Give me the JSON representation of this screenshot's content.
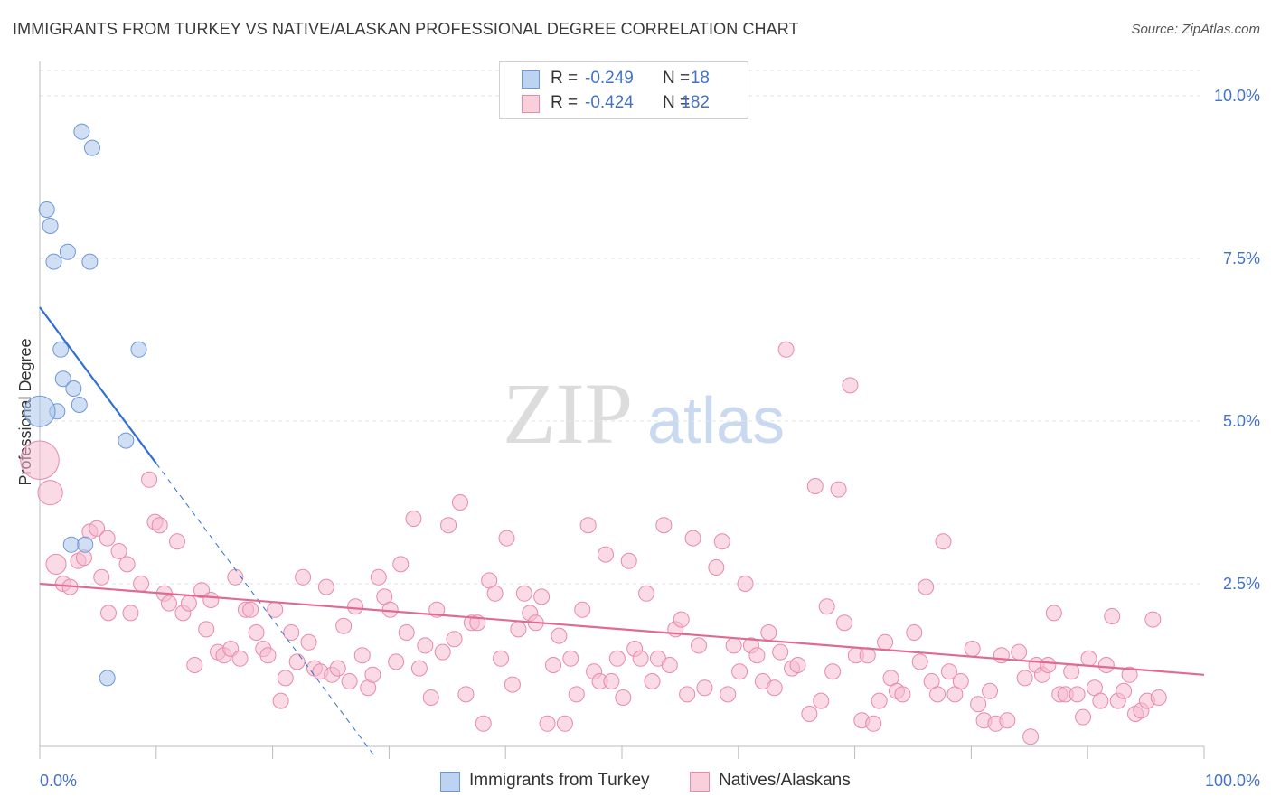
{
  "title": "IMMIGRANTS FROM TURKEY VS NATIVE/ALASKAN PROFESSIONAL DEGREE CORRELATION CHART",
  "source": "Source: ZipAtlas.com",
  "watermark": {
    "zip": "ZIP",
    "atlas": "atlas"
  },
  "legend": {
    "rows": [
      {
        "r_label": "R =",
        "r_value": "-0.249",
        "n_label": "N =",
        "n_value": "18",
        "color": "#a9c4eb",
        "border": "#6f97d6"
      },
      {
        "r_label": "R =",
        "r_value": "-0.424",
        "n_label": "N =",
        "n_value": "182",
        "color": "#f6bccd",
        "border": "#e88aa8"
      }
    ]
  },
  "bottom_legend": [
    {
      "label": "Immigrants from Turkey",
      "color": "#a9c4eb",
      "border": "#6f97d6"
    },
    {
      "label": "Natives/Alaskans",
      "color": "#f6bccd",
      "border": "#e88aa8"
    }
  ],
  "chart_data": {
    "type": "scatter",
    "title": "IMMIGRANTS FROM TURKEY VS NATIVE/ALASKAN PROFESSIONAL DEGREE CORRELATION CHART",
    "xlabel": "",
    "ylabel": "Professional Degree",
    "xlim": [
      0,
      100
    ],
    "ylim": [
      0,
      10.5
    ],
    "x_tick_labels": [
      "0.0%",
      "100.0%"
    ],
    "y_ticks": [
      2.5,
      5.0,
      7.5,
      10.0
    ],
    "y_tick_labels": [
      "2.5%",
      "5.0%",
      "7.5%",
      "10.0%"
    ],
    "grid": true,
    "series": [
      {
        "name": "Immigrants from Turkey",
        "color": "#a9c4eb",
        "stroke": "#6f97d6",
        "trend": {
          "x0": 0,
          "y0": 6.75,
          "x1": 10.0,
          "y1": 4.35,
          "dash_to_x": 28.7,
          "line_color": "#2f6fd6"
        },
        "points": [
          [
            3.6,
            9.45,
            1
          ],
          [
            4.5,
            9.2,
            1
          ],
          [
            0.6,
            8.25,
            1
          ],
          [
            0.9,
            8.0,
            1
          ],
          [
            2.4,
            7.6,
            1
          ],
          [
            1.2,
            7.45,
            1
          ],
          [
            4.3,
            7.45,
            1
          ],
          [
            8.5,
            6.1,
            1
          ],
          [
            1.8,
            6.1,
            1
          ],
          [
            2.0,
            5.65,
            1
          ],
          [
            2.9,
            5.5,
            1
          ],
          [
            3.4,
            5.25,
            1
          ],
          [
            1.5,
            5.15,
            1
          ],
          [
            0.0,
            5.15,
            2
          ],
          [
            7.4,
            4.7,
            1
          ],
          [
            2.7,
            3.1,
            1
          ],
          [
            3.9,
            3.1,
            1
          ],
          [
            5.8,
            1.05,
            1
          ]
        ]
      },
      {
        "name": "Natives/Alaskans",
        "color": "#f6bccd",
        "stroke": "#e88aa8",
        "trend": {
          "x0": 0,
          "y0": 2.5,
          "x1": 100,
          "y1": 1.1,
          "line_color": "#e06a93"
        },
        "points": [
          [
            0.0,
            4.4,
            2.5
          ],
          [
            0.9,
            3.9,
            1.6
          ],
          [
            1.4,
            2.8,
            1.3
          ],
          [
            2.0,
            2.5,
            1
          ],
          [
            2.6,
            2.45,
            1
          ],
          [
            3.3,
            2.85,
            1
          ],
          [
            3.8,
            2.9,
            1
          ],
          [
            4.3,
            3.3,
            1
          ],
          [
            4.9,
            3.35,
            1
          ],
          [
            5.8,
            3.2,
            1
          ],
          [
            6.8,
            3.0,
            1
          ],
          [
            7.5,
            2.8,
            1
          ],
          [
            5.3,
            2.6,
            1
          ],
          [
            5.9,
            2.05,
            1
          ],
          [
            7.8,
            2.05,
            1
          ],
          [
            8.7,
            2.5,
            1
          ],
          [
            9.4,
            4.1,
            1
          ],
          [
            9.9,
            3.45,
            1
          ],
          [
            10.3,
            3.4,
            1
          ],
          [
            10.7,
            2.35,
            1
          ],
          [
            11.1,
            2.2,
            1
          ],
          [
            11.8,
            3.15,
            1
          ],
          [
            12.3,
            2.05,
            1
          ],
          [
            12.8,
            2.2,
            1
          ],
          [
            13.3,
            1.25,
            1
          ],
          [
            13.9,
            2.4,
            1
          ],
          [
            14.3,
            1.8,
            1
          ],
          [
            14.7,
            2.25,
            1
          ],
          [
            15.3,
            1.45,
            1
          ],
          [
            15.8,
            1.4,
            1
          ],
          [
            16.4,
            1.5,
            1
          ],
          [
            16.8,
            2.6,
            1
          ],
          [
            17.2,
            1.35,
            1
          ],
          [
            17.7,
            2.1,
            1
          ],
          [
            18.1,
            2.1,
            1
          ],
          [
            18.6,
            1.75,
            1
          ],
          [
            19.2,
            1.5,
            1
          ],
          [
            19.6,
            1.4,
            1
          ],
          [
            20.2,
            2.1,
            1
          ],
          [
            20.7,
            0.7,
            1
          ],
          [
            21.1,
            1.05,
            1
          ],
          [
            21.6,
            1.75,
            1
          ],
          [
            22.1,
            1.3,
            1
          ],
          [
            22.6,
            2.6,
            1
          ],
          [
            23.1,
            1.6,
            1
          ],
          [
            23.6,
            1.2,
            1
          ],
          [
            24.1,
            1.15,
            1
          ],
          [
            24.6,
            2.45,
            1
          ],
          [
            25.1,
            1.1,
            1
          ],
          [
            25.6,
            1.2,
            1
          ],
          [
            26.1,
            1.85,
            1
          ],
          [
            26.6,
            1.0,
            1
          ],
          [
            27.1,
            2.15,
            1
          ],
          [
            27.7,
            1.4,
            1
          ],
          [
            28.2,
            0.9,
            1
          ],
          [
            28.6,
            1.1,
            1
          ],
          [
            29.1,
            2.6,
            1
          ],
          [
            29.6,
            2.3,
            1
          ],
          [
            30.1,
            2.1,
            1
          ],
          [
            30.6,
            1.3,
            1
          ],
          [
            31.0,
            2.8,
            1
          ],
          [
            31.5,
            1.75,
            1
          ],
          [
            32.1,
            3.5,
            1
          ],
          [
            32.6,
            1.2,
            1
          ],
          [
            33.1,
            1.55,
            1
          ],
          [
            33.6,
            0.75,
            1
          ],
          [
            34.1,
            2.1,
            1
          ],
          [
            34.6,
            1.45,
            1
          ],
          [
            35.1,
            3.4,
            1
          ],
          [
            35.6,
            1.65,
            1
          ],
          [
            36.1,
            3.75,
            1
          ],
          [
            36.6,
            0.8,
            1
          ],
          [
            37.1,
            1.9,
            1
          ],
          [
            37.6,
            1.9,
            1
          ],
          [
            38.1,
            0.35,
            1
          ],
          [
            38.6,
            2.55,
            1
          ],
          [
            39.1,
            2.35,
            1
          ],
          [
            39.6,
            1.35,
            1
          ],
          [
            40.1,
            3.2,
            1
          ],
          [
            40.6,
            0.95,
            1
          ],
          [
            41.1,
            1.8,
            1
          ],
          [
            41.6,
            2.35,
            1
          ],
          [
            42.1,
            2.05,
            1
          ],
          [
            42.6,
            1.9,
            1
          ],
          [
            43.1,
            2.3,
            1
          ],
          [
            43.6,
            0.35,
            1
          ],
          [
            44.1,
            1.25,
            1
          ],
          [
            44.6,
            1.7,
            1
          ],
          [
            45.1,
            0.35,
            1
          ],
          [
            45.6,
            1.35,
            1
          ],
          [
            46.1,
            0.8,
            1
          ],
          [
            46.6,
            2.1,
            1
          ],
          [
            47.1,
            3.4,
            1
          ],
          [
            47.6,
            1.15,
            1
          ],
          [
            48.1,
            1.0,
            1
          ],
          [
            48.6,
            2.95,
            1
          ],
          [
            49.1,
            1.0,
            1
          ],
          [
            49.6,
            1.35,
            1
          ],
          [
            50.1,
            0.75,
            1
          ],
          [
            50.6,
            2.85,
            1
          ],
          [
            51.1,
            1.5,
            1
          ],
          [
            51.6,
            1.35,
            1
          ],
          [
            52.1,
            2.35,
            1
          ],
          [
            52.6,
            1.0,
            1
          ],
          [
            53.1,
            1.35,
            1
          ],
          [
            53.6,
            3.4,
            1
          ],
          [
            54.1,
            1.25,
            1
          ],
          [
            54.6,
            1.8,
            1
          ],
          [
            55.1,
            1.95,
            1
          ],
          [
            55.6,
            0.8,
            1
          ],
          [
            56.1,
            3.2,
            1
          ],
          [
            56.6,
            1.55,
            1
          ],
          [
            57.1,
            0.9,
            1
          ],
          [
            58.1,
            2.75,
            1
          ],
          [
            58.6,
            3.15,
            1
          ],
          [
            59.1,
            0.8,
            1
          ],
          [
            59.6,
            1.55,
            1
          ],
          [
            60.1,
            1.15,
            1
          ],
          [
            60.6,
            2.5,
            1
          ],
          [
            61.1,
            1.55,
            1
          ],
          [
            61.6,
            1.4,
            1
          ],
          [
            62.1,
            1.0,
            1
          ],
          [
            62.6,
            1.75,
            1
          ],
          [
            63.1,
            0.9,
            1
          ],
          [
            63.6,
            1.45,
            1
          ],
          [
            64.1,
            6.1,
            1
          ],
          [
            64.6,
            1.2,
            1
          ],
          [
            65.1,
            1.25,
            1
          ],
          [
            66.1,
            0.5,
            1
          ],
          [
            66.6,
            4.0,
            1
          ],
          [
            67.1,
            0.7,
            1
          ],
          [
            67.6,
            2.15,
            1
          ],
          [
            68.1,
            1.15,
            1
          ],
          [
            68.6,
            3.95,
            1
          ],
          [
            69.1,
            1.9,
            1
          ],
          [
            69.6,
            5.55,
            1
          ],
          [
            70.1,
            1.4,
            1
          ],
          [
            70.6,
            0.4,
            1
          ],
          [
            71.1,
            1.4,
            1
          ],
          [
            71.6,
            0.35,
            1
          ],
          [
            72.1,
            0.7,
            1
          ],
          [
            72.6,
            1.6,
            1
          ],
          [
            73.1,
            1.05,
            1
          ],
          [
            73.6,
            0.85,
            1
          ],
          [
            74.1,
            0.8,
            1
          ],
          [
            75.1,
            1.75,
            1
          ],
          [
            75.6,
            1.3,
            1
          ],
          [
            76.1,
            2.45,
            1
          ],
          [
            76.6,
            1.0,
            1
          ],
          [
            77.1,
            0.8,
            1
          ],
          [
            77.6,
            3.15,
            1
          ],
          [
            78.1,
            1.15,
            1
          ],
          [
            78.6,
            0.8,
            1
          ],
          [
            79.1,
            1.0,
            1
          ],
          [
            80.1,
            1.5,
            1
          ],
          [
            80.6,
            0.65,
            1
          ],
          [
            81.1,
            0.4,
            1
          ],
          [
            81.6,
            0.85,
            1
          ],
          [
            82.1,
            0.35,
            1
          ],
          [
            82.6,
            1.4,
            1
          ],
          [
            83.1,
            0.4,
            1
          ],
          [
            84.1,
            1.45,
            1
          ],
          [
            84.6,
            1.05,
            1
          ],
          [
            85.1,
            0.15,
            1
          ],
          [
            85.6,
            1.25,
            1
          ],
          [
            86.1,
            1.1,
            1
          ],
          [
            86.6,
            1.25,
            1
          ],
          [
            87.1,
            2.05,
            1
          ],
          [
            87.6,
            0.8,
            1
          ],
          [
            88.1,
            0.8,
            1
          ],
          [
            88.6,
            1.15,
            1
          ],
          [
            89.1,
            0.8,
            1
          ],
          [
            89.6,
            0.45,
            1
          ],
          [
            90.1,
            1.35,
            1
          ],
          [
            90.6,
            0.9,
            1
          ],
          [
            91.1,
            0.7,
            1
          ],
          [
            91.6,
            1.25,
            1
          ],
          [
            92.1,
            2.0,
            1
          ],
          [
            92.6,
            0.7,
            1
          ],
          [
            93.1,
            0.85,
            1
          ],
          [
            93.6,
            1.1,
            1
          ],
          [
            94.1,
            0.5,
            1
          ],
          [
            94.6,
            0.55,
            1
          ],
          [
            95.1,
            0.7,
            1
          ],
          [
            95.6,
            1.95,
            1
          ],
          [
            96.1,
            0.75,
            1
          ]
        ]
      }
    ]
  }
}
